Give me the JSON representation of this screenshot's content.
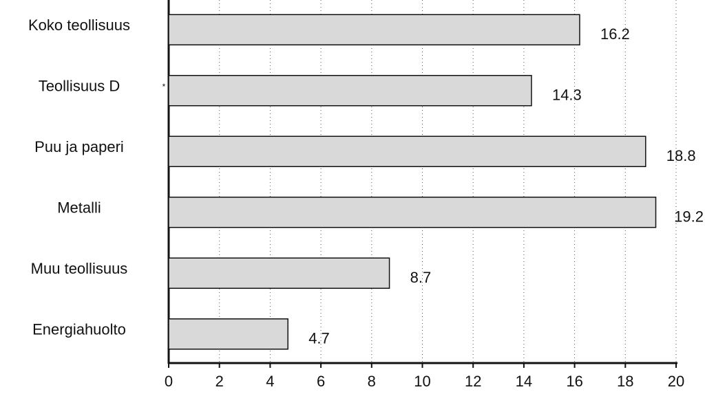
{
  "chart_data": {
    "type": "barh",
    "categories": [
      "Koko teollisuus",
      "Teollisuus D",
      "Puu ja paperi",
      "Metalli",
      "Muu teollisuus",
      "Energiahuolto"
    ],
    "values": [
      16.2,
      14.3,
      18.8,
      19.2,
      8.7,
      4.7
    ],
    "color": "#d9d9d9",
    "annotation": "*",
    "xlim": [
      0,
      20
    ],
    "xticks": [
      0,
      2,
      4,
      6,
      8,
      10,
      12,
      14,
      16,
      18,
      20
    ],
    "grid": true
  }
}
